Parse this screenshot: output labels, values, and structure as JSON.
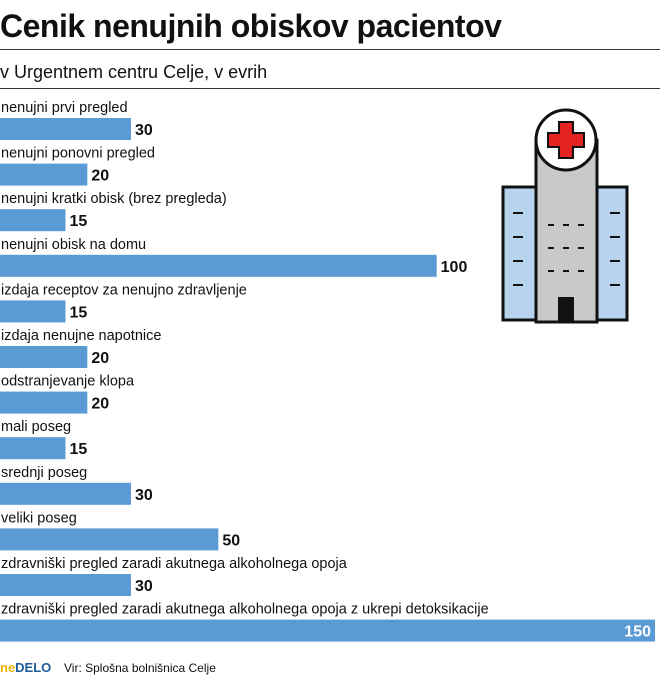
{
  "header": {
    "title": "Cenik nenujnih obiskov pacientov",
    "subtitle": "v Urgentnem centru Celje, v evrih"
  },
  "footer": {
    "logo_ne": "ne",
    "logo_delo": "DELO",
    "source": "Vir: Splošna bolnišnica Celje"
  },
  "chart_data": {
    "type": "bar",
    "orientation": "horizontal",
    "categories": [
      "nenujni prvi pregled",
      "nenujni ponovni pregled",
      "nenujni kratki obisk (brez pregleda)",
      "nenujni obisk na domu",
      "izdaja receptov za nenujno zdravljenje",
      "izdaja nenujne napotnice",
      "odstranjevanje klopa",
      "mali poseg",
      "srednji poseg",
      "veliki poseg",
      "zdravniški pregled zaradi akutnega alkoholnega opoja",
      "zdravniški pregled zaradi akutnega alkoholnega opoja z ukrepi detoksikacije"
    ],
    "values": [
      30,
      20,
      15,
      100,
      15,
      20,
      20,
      15,
      30,
      50,
      30,
      150
    ],
    "value_labels": [
      "30",
      "20",
      "15",
      "100",
      "15",
      "20",
      "20",
      "15",
      "30",
      "50",
      "30",
      "150"
    ],
    "bar_color": "#5b9bd5",
    "xlim": [
      0,
      150
    ]
  },
  "colors": {
    "bar": "#5b9bd5",
    "icon_red": "#e52222",
    "building_grey": "#c9c9c9",
    "building_blue": "#b7d3ee"
  }
}
